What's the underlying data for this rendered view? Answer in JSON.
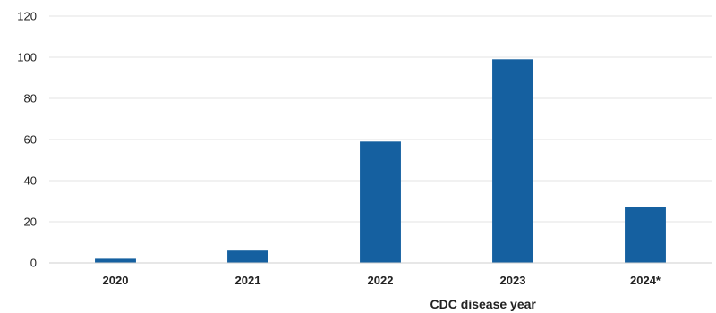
{
  "chart_data": {
    "type": "bar",
    "title": "",
    "xlabel": "CDC disease year",
    "ylabel": "",
    "categories": [
      "2020",
      "2021",
      "2022",
      "2023",
      "2024*"
    ],
    "values": [
      2,
      6,
      59,
      99,
      27
    ],
    "ylim": [
      0,
      120
    ],
    "yticks": [
      0,
      20,
      40,
      60,
      80,
      100,
      120
    ],
    "grid": true,
    "legend": "none",
    "bar_color": "#1560a0",
    "grid_color": "#e3e3e3",
    "axis_color": "#cfcfcf"
  }
}
